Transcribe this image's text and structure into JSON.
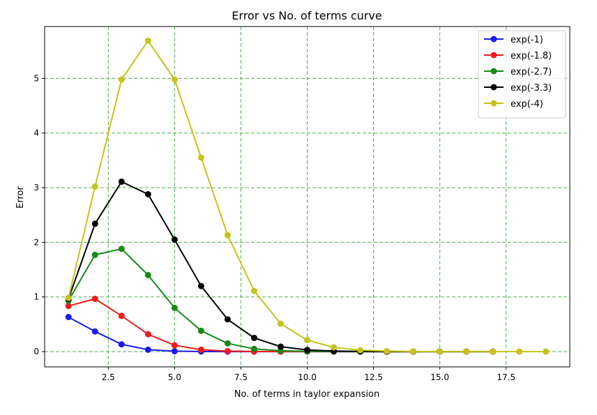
{
  "chart_data": {
    "type": "line",
    "title": "Error vs No. of terms curve",
    "xlabel": "No. of terms in taylor expansion",
    "ylabel": "Error",
    "xlim": [
      0.1,
      19.9
    ],
    "ylim": [
      -0.28,
      5.95
    ],
    "xticks": [
      2.5,
      5.0,
      7.5,
      10.0,
      12.5,
      15.0,
      17.5
    ],
    "xtick_labels": [
      "2.5",
      "5.0",
      "7.5",
      "10.0",
      "12.5",
      "15.0",
      "17.5"
    ],
    "yticks": [
      0,
      1,
      2,
      3,
      4,
      5
    ],
    "ytick_labels": [
      "0",
      "1",
      "2",
      "3",
      "4",
      "5"
    ],
    "grid": true,
    "grid_color": "#4daf4a",
    "legend_position": "top-right",
    "series": [
      {
        "name": "exp(-1)",
        "color": "#1a1af0",
        "x": [
          1,
          2,
          3,
          4,
          5,
          6,
          7,
          8,
          9,
          10,
          11,
          12,
          13,
          14,
          15,
          16,
          17
        ],
        "y": [
          0.632,
          0.368,
          0.132,
          0.034,
          0.007,
          0.001,
          0.0,
          0.0,
          0.0,
          0.0,
          0.0,
          0.0,
          0.0,
          0.0,
          0.0,
          0.0,
          0.0
        ]
      },
      {
        "name": "exp(-1.8)",
        "color": "#f01a1a",
        "x": [
          1,
          2,
          3,
          4,
          5,
          6,
          7,
          8,
          9,
          10,
          11,
          12,
          13,
          14,
          15,
          16,
          17
        ],
        "y": [
          0.835,
          0.965,
          0.655,
          0.317,
          0.116,
          0.034,
          0.008,
          0.002,
          0.0,
          0.0,
          0.0,
          0.0,
          0.0,
          0.0,
          0.0,
          0.0,
          0.0
        ]
      },
      {
        "name": "exp(-2.7)",
        "color": "#168a16",
        "x": [
          1,
          2,
          3,
          4,
          5,
          6,
          7,
          8,
          9,
          10,
          11,
          12,
          13,
          14,
          15,
          16,
          17
        ],
        "y": [
          0.933,
          1.77,
          1.88,
          1.4,
          0.8,
          0.38,
          0.15,
          0.05,
          0.015,
          0.004,
          0.001,
          0.0,
          0.0,
          0.0,
          0.0,
          0.0,
          0.0
        ]
      },
      {
        "name": "exp(-3.3)",
        "color": "#000000",
        "x": [
          1,
          2,
          3,
          4,
          5,
          6,
          7,
          8,
          9,
          10,
          11,
          12,
          13,
          14,
          15,
          16,
          17
        ],
        "y": [
          0.963,
          2.34,
          3.11,
          2.88,
          2.05,
          1.2,
          0.59,
          0.25,
          0.09,
          0.03,
          0.01,
          0.003,
          0.0,
          0.0,
          0.0,
          0.0,
          0.0
        ]
      },
      {
        "name": "exp(-4)",
        "color": "#c4c41a",
        "x": [
          1,
          2,
          3,
          4,
          5,
          6,
          7,
          8,
          9,
          10,
          11,
          12,
          13,
          14,
          15,
          16,
          17,
          18,
          19
        ],
        "y": [
          0.982,
          3.02,
          4.98,
          5.69,
          4.98,
          3.55,
          2.13,
          1.11,
          0.51,
          0.21,
          0.078,
          0.026,
          0.008,
          0.002,
          0.0,
          0.0,
          0.0,
          0.0,
          0.0
        ]
      }
    ]
  }
}
